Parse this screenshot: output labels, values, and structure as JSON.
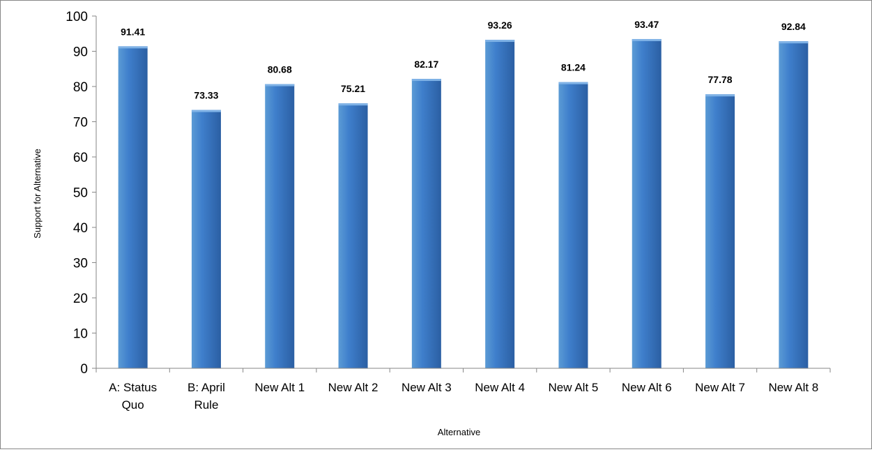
{
  "chart_data": {
    "type": "bar",
    "title": "",
    "xlabel": "Alternative",
    "ylabel": "Support for Alternative",
    "ylim": [
      0,
      100
    ],
    "yticks": [
      "0",
      "10",
      "20",
      "30",
      "40",
      "50",
      "60",
      "70",
      "80",
      "90",
      "100"
    ],
    "grid": false,
    "legend": "none",
    "categories": [
      [
        "A: Status",
        "Quo"
      ],
      [
        "B: April",
        "Rule"
      ],
      [
        "New Alt 1"
      ],
      [
        "New Alt 2"
      ],
      [
        "New Alt 3"
      ],
      [
        "New Alt 4"
      ],
      [
        "New Alt 5"
      ],
      [
        "New Alt 6"
      ],
      [
        "New Alt 7"
      ],
      [
        "New Alt 8"
      ]
    ],
    "values": [
      91.41,
      73.33,
      80.68,
      75.21,
      82.17,
      93.26,
      81.24,
      93.47,
      77.78,
      92.84
    ],
    "data_labels": [
      "91.41",
      "73.33",
      "80.68",
      "75.21",
      "82.17",
      "93.26",
      "81.24",
      "93.47",
      "77.78",
      "92.84"
    ],
    "colors": {
      "bar_light": "#5b9bd5",
      "bar_mid": "#3f7fcc",
      "bar_dark": "#2b5fa3",
      "axis": "#868686"
    }
  }
}
